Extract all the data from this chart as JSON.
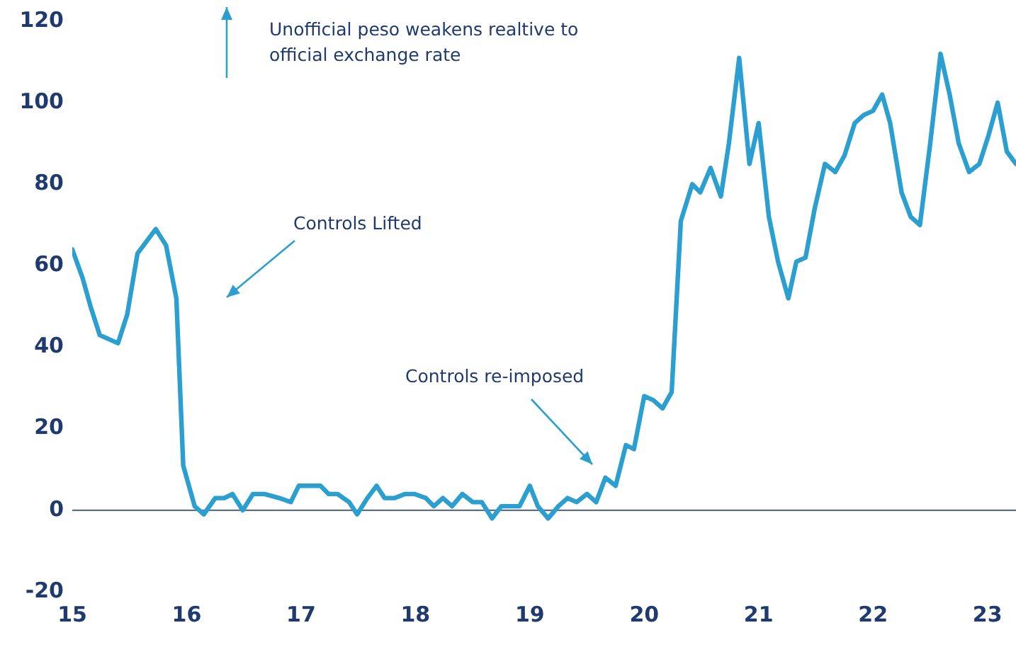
{
  "chart_data": {
    "type": "line",
    "x": [
      15.0,
      15.09,
      15.16,
      15.24,
      15.32,
      15.4,
      15.48,
      15.57,
      15.73,
      15.82,
      15.91,
      15.97,
      16.07,
      16.15,
      16.25,
      16.33,
      16.4,
      16.49,
      16.58,
      16.68,
      16.81,
      16.91,
      16.98,
      17.07,
      17.17,
      17.24,
      17.32,
      17.42,
      17.49,
      17.58,
      17.66,
      17.73,
      17.82,
      17.91,
      17.99,
      18.09,
      18.16,
      18.24,
      18.32,
      18.41,
      18.5,
      18.58,
      18.67,
      18.75,
      18.91,
      19.0,
      19.07,
      19.16,
      19.25,
      19.33,
      19.41,
      19.5,
      19.58,
      19.66,
      19.75,
      19.84,
      19.91,
      20.0,
      20.08,
      20.16,
      20.24,
      20.32,
      20.42,
      20.49,
      20.58,
      20.67,
      20.74,
      20.83,
      20.92,
      21.0,
      21.09,
      21.17,
      21.26,
      21.33,
      21.41,
      21.49,
      21.58,
      21.67,
      21.75,
      21.84,
      21.92,
      22.0,
      22.08,
      22.15,
      22.25,
      22.33,
      22.41,
      22.5,
      22.59,
      22.67,
      22.75,
      22.84,
      22.93,
      23.01,
      23.09,
      23.17,
      23.25
    ],
    "series": [
      {
        "color": "#2a9fd0",
        "values": [
          64,
          57,
          50,
          43,
          42,
          41,
          48,
          63,
          69,
          65,
          52,
          11,
          1,
          -1,
          3,
          3,
          4,
          0,
          4,
          4,
          3,
          2,
          6,
          6,
          6,
          4,
          4,
          2,
          -1,
          3,
          6,
          3,
          3,
          4,
          4,
          3,
          1,
          3,
          1,
          4,
          2,
          2,
          -2,
          1,
          1,
          6,
          1,
          -2,
          1,
          3,
          2,
          4,
          2,
          8,
          6,
          16,
          15,
          28,
          27,
          25,
          29,
          71,
          80,
          78,
          84,
          77,
          90,
          111,
          85,
          95,
          72,
          61,
          52,
          61,
          62,
          74,
          85,
          83,
          87,
          95,
          97,
          98,
          102,
          95,
          78,
          72,
          70,
          90,
          112,
          102,
          90,
          83,
          85,
          92,
          100,
          88,
          85
        ]
      }
    ],
    "xlim": [
      15,
      23.25
    ],
    "xticks": [
      15,
      16,
      17,
      18,
      19,
      20,
      21,
      22,
      23
    ],
    "ylim": [
      -20,
      120
    ],
    "yticks": [
      -20,
      0,
      20,
      40,
      60,
      80,
      100,
      120
    ],
    "grid": false,
    "legend": false,
    "marker": "none",
    "line_style": "solid",
    "ref_lines": [
      {
        "axis": "y",
        "value": 0,
        "color": "#5f7189"
      }
    ],
    "annotations": [
      "Unofficial peso weakens realtive to official exchange rate",
      "Controls Lifted",
      "Controls re-imposed"
    ]
  }
}
